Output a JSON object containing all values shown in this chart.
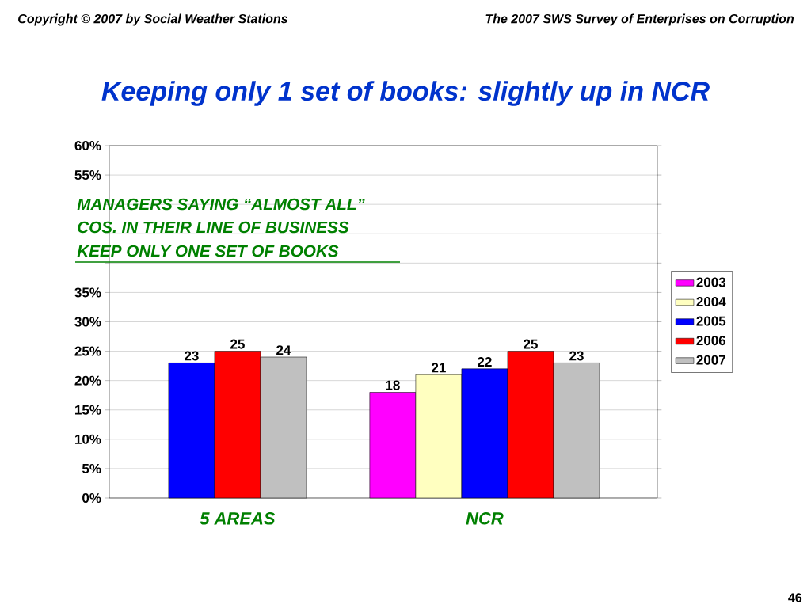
{
  "chart_data": {
    "type": "bar",
    "title": "Keeping only 1 set of books: slightly up in NCR",
    "categories": [
      "5 AREAS",
      "NCR"
    ],
    "series": [
      {
        "name": "2003",
        "color": "#ff00ff",
        "values": [
          null,
          18
        ]
      },
      {
        "name": "2004",
        "color": "#ffffc0",
        "values": [
          null,
          21
        ]
      },
      {
        "name": "2005",
        "color": "#0000ff",
        "values": [
          23,
          22
        ]
      },
      {
        "name": "2006",
        "color": "#ff0000",
        "values": [
          25,
          25
        ]
      },
      {
        "name": "2007",
        "color": "#c0c0c0",
        "values": [
          24,
          23
        ]
      }
    ],
    "ylim": [
      0,
      60
    ],
    "yticks": [
      {
        "value": 0,
        "label": "0%"
      },
      {
        "value": 5,
        "label": "5%"
      },
      {
        "value": 10,
        "label": "10%"
      },
      {
        "value": 15,
        "label": "15%"
      },
      {
        "value": 20,
        "label": "20%"
      },
      {
        "value": 25,
        "label": "25%"
      },
      {
        "value": 30,
        "label": "30%"
      },
      {
        "value": 35,
        "label": "35%"
      },
      {
        "value": 40,
        "label": null
      },
      {
        "value": 45,
        "label": null
      },
      {
        "value": 50,
        "label": null
      },
      {
        "value": 55,
        "label": "55%"
      },
      {
        "value": 60,
        "label": "60%"
      }
    ],
    "grid": "y",
    "legend": "right",
    "data_labels": true,
    "annotations": [
      "Copyright © 2007 by Social Weather Stations",
      "The 2007 SWS Survey of Enterprises on Corruption",
      "MANAGERS SAYING “ALMOST ALL”",
      "COS. IN THEIR LINE OF BUSINESS",
      "KEEP ONLY ONE SET OF BOOKS",
      "46"
    ]
  }
}
